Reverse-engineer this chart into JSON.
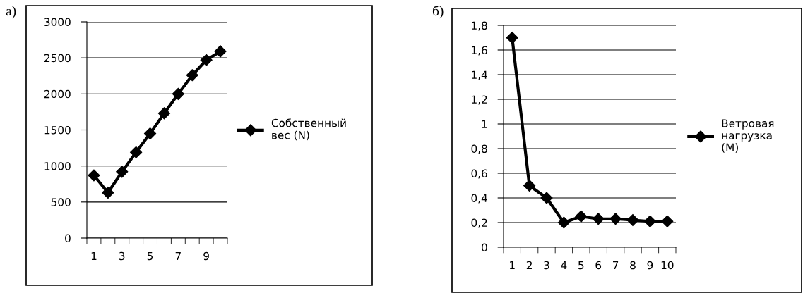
{
  "chart_data": [
    {
      "type": "line",
      "annotations": [
        "а)"
      ],
      "categories": [
        "1",
        null,
        "3",
        null,
        "5",
        null,
        "7",
        null,
        "9",
        null
      ],
      "series": [
        {
          "name": "Собственный вес (N)",
          "color": "#000000",
          "values": [
            870,
            630,
            920,
            1190,
            1450,
            1730,
            2000,
            2260,
            2470,
            2590
          ]
        }
      ],
      "ylim": [
        0,
        3000
      ],
      "yticks": [
        0,
        500,
        1000,
        1500,
        2000,
        2500,
        3000
      ],
      "grid": "y",
      "legend": "right",
      "marker": "diamond",
      "line_style": "solid"
    },
    {
      "type": "line",
      "annotations": [
        "б)"
      ],
      "categories": [
        "1",
        "2",
        "3",
        "4",
        "5",
        "6",
        "7",
        "8",
        "9",
        "10"
      ],
      "series": [
        {
          "name": "Ветровая нагрузка (M)",
          "color": "#000000",
          "values": [
            1.7,
            0.5,
            0.4,
            0.2,
            0.25,
            0.23,
            0.23,
            0.22,
            0.21,
            0.21
          ]
        }
      ],
      "ylim": [
        0,
        1.8
      ],
      "yticks": [
        0,
        {
          "value": 0.2,
          "label": "0,2"
        },
        {
          "value": 0.4,
          "label": "0,4"
        },
        {
          "value": 0.6,
          "label": "0,6"
        },
        {
          "value": 0.8,
          "label": "0,8"
        },
        1,
        {
          "value": 1.2,
          "label": "1,2"
        },
        {
          "value": 1.4,
          "label": "1,4"
        },
        {
          "value": 1.6,
          "label": "1,6"
        },
        {
          "value": 1.8,
          "label": "1,8"
        }
      ],
      "grid": "y",
      "legend": "right",
      "marker": "diamond",
      "line_style": "solid"
    }
  ]
}
